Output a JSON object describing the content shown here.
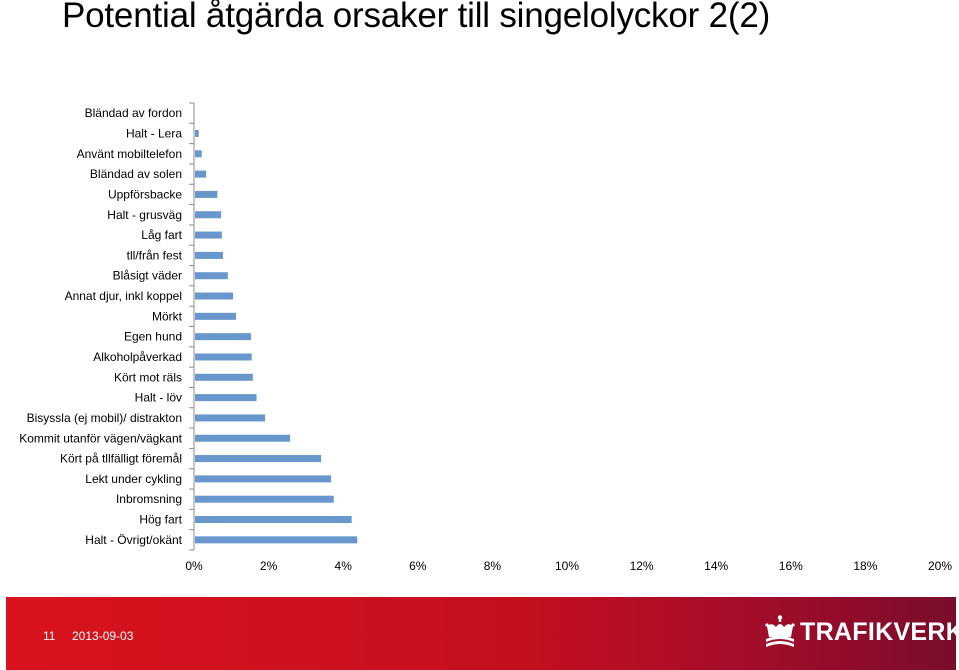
{
  "title": "Potential åtgärda orsaker till singelolyckor 2(2)",
  "chart_data": {
    "type": "bar",
    "orientation": "horizontal",
    "categories": [
      "Bländad av fordon",
      "Halt - Lera",
      "Använt mobiltelefon",
      "Bländad av solen",
      "Uppförsbacke",
      "Halt - grusväg",
      "Låg fart",
      "tll/från fest",
      "Blåsigt väder",
      "Annat djur, inkl koppel",
      "Mörkt",
      "Egen hund",
      "Alkoholpåverkad",
      "Kört mot räls",
      "Halt - löv",
      "Bisyssla (ej mobil)/ distrakton",
      "Kommit utanför vägen/vägkant",
      "Kört på tllfälligt föremål",
      "Lekt under cykling",
      "Inbromsning",
      "Hög fart",
      "Halt - Övrigt/okänt"
    ],
    "values": [
      0,
      0.1,
      0.18,
      0.3,
      0.6,
      0.7,
      0.72,
      0.75,
      0.88,
      1.02,
      1.1,
      1.5,
      1.52,
      1.55,
      1.65,
      1.88,
      2.55,
      3.38,
      3.65,
      3.72,
      4.2,
      4.35
    ],
    "xlim": [
      0,
      20
    ],
    "xticks": [
      "0%",
      "2%",
      "4%",
      "6%",
      "8%",
      "10%",
      "12%",
      "14%",
      "16%",
      "18%",
      "20%"
    ],
    "color": "#6797cd",
    "xlabel": "",
    "ylabel": ""
  },
  "footer": {
    "page_number": "11",
    "date": "2013-09-03",
    "logo_text": "TRAFIKVERKET",
    "background": "#c8102e"
  }
}
